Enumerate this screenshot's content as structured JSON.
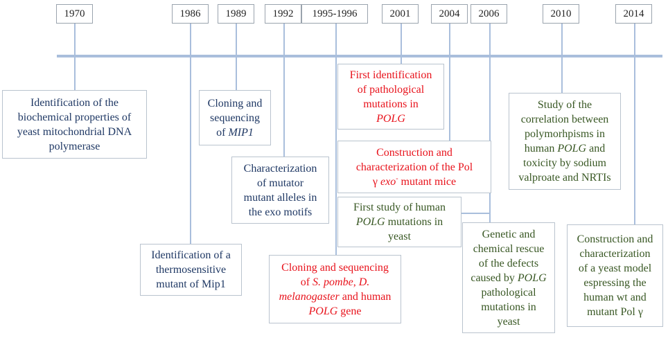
{
  "years": [
    "1970",
    "1986",
    "1989",
    "1992",
    "1995-1996",
    "2001",
    "2004",
    "2006",
    "2010",
    "2014"
  ],
  "events": {
    "e1970": [
      "Identification of the",
      "biochemical properties of",
      "yeast mitochondrial DNA",
      "polymerase"
    ],
    "e1986": [
      "Identification of a",
      "thermosensitive",
      "mutant of Mip1"
    ],
    "e1989": [
      "Cloning and",
      "sequencing",
      "of ",
      "MIP1"
    ],
    "e1992": [
      "Characterization",
      "of mutator",
      "mutant alleles in",
      "the exo motifs"
    ],
    "e1995": [
      "Cloning and sequencing",
      "of ",
      "S. pombe",
      ", ",
      "D.",
      "melanogaster",
      " and human",
      "POLG",
      " gene"
    ],
    "e2001": [
      "First identification",
      "of pathological",
      "mutations in",
      "POLG"
    ],
    "e2004": [
      "Construction and",
      "characterization of the Pol",
      "γ ",
      "exo",
      "-",
      " mutant mice"
    ],
    "e2006a": [
      "First study of human",
      "POLG",
      " mutations in",
      "yeast"
    ],
    "e2006b": [
      "Genetic and",
      "chemical rescue",
      "of the defects",
      "caused by ",
      "POLG",
      "pathological",
      "mutations in",
      "yeast"
    ],
    "e2010": [
      "Study of the",
      "correlation between",
      "polymorhpisms in",
      "human ",
      "POLG",
      " and",
      "toxicity by sodium",
      "valproate and NRTIs"
    ],
    "e2014": [
      "Construction and",
      "characterization",
      "of a yeast model",
      "espressing the",
      "human wt and",
      "mutant Pol γ"
    ]
  },
  "colors": {
    "navy": "#1f3864",
    "red": "#e8121b",
    "green": "#385723",
    "line": "#a9bedc",
    "box_border": "#b9c3ce"
  }
}
